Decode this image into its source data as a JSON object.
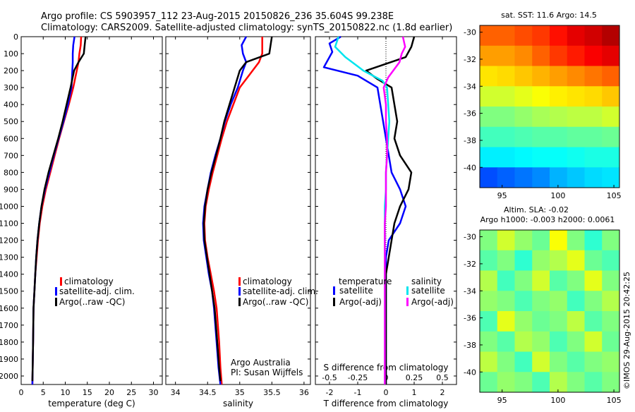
{
  "header": {
    "line1": "Argo profile: CS 5903957_112 23-Aug-2015 20150826_236 35.604S 99.238E",
    "line2": "Climatology: CARS2009. Satellite-adjusted climatology: synTS_20150822.nc (1.8d earlier)"
  },
  "colors": {
    "climatology": "#ff0000",
    "satellite": "#0000ff",
    "argo": "#000000",
    "satellite_salinity": "#00e5ee",
    "argo_salinity": "#ff00ff"
  },
  "legend": {
    "climatology": "climatology",
    "satellite": "satellite-adj. clim.",
    "argo": "Argo(..raw -QC)",
    "diff_temp_title": "temperature",
    "diff_sal_title": "salinity",
    "diff_satellite": "satellite",
    "diff_argo": "Argo(-adj)"
  },
  "annotations": {
    "institution": "Argo Australia",
    "pi": "PI: Susan Wijffels",
    "sst_title": "sat. SST: 11.6  Argo: 14.5",
    "sla_title1": "Altim. SLA: -0.02",
    "sla_title2": "Argo h1000: -0.003 h2000: 0.0061",
    "credit": "©IMOS 29-Aug-2015 20:42:25"
  },
  "chart_data": [
    {
      "type": "line",
      "xlabel": "temperature (deg C)",
      "xlim": [
        0,
        32
      ],
      "ylim": [
        0,
        2050
      ],
      "xticks": [
        0,
        5,
        10,
        15,
        20,
        25,
        30
      ],
      "yticks": [
        0,
        100,
        200,
        300,
        400,
        500,
        600,
        700,
        800,
        900,
        1000,
        1100,
        1200,
        1300,
        1400,
        1500,
        1600,
        1700,
        1800,
        1900,
        2000
      ],
      "y_reversed": true,
      "grid": false,
      "legend_position": "lower-right",
      "series": [
        {
          "name": "climatology",
          "color_key": "climatology",
          "x": [
            13.6,
            13.5,
            13.2,
            13.0,
            12.6,
            11.8,
            10.8,
            9.7,
            8.6,
            7.6,
            6.6,
            5.6,
            4.8,
            4.2,
            3.8,
            3.5,
            3.2,
            3.0,
            2.8,
            2.7,
            2.6,
            2.55
          ],
          "y": [
            0,
            50,
            100,
            150,
            200,
            300,
            400,
            500,
            600,
            700,
            800,
            900,
            1000,
            1100,
            1200,
            1300,
            1400,
            1500,
            1600,
            1800,
            1950,
            2050
          ]
        },
        {
          "name": "satellite-adj. clim.",
          "color_key": "satellite",
          "x": [
            12.1,
            11.8,
            11.7,
            11.7,
            11.6,
            11.4,
            10.6,
            9.6,
            8.5,
            7.4,
            6.4,
            5.4,
            4.6,
            4.1,
            3.7,
            3.4,
            3.2,
            3.0,
            2.8,
            2.7,
            2.6,
            2.55
          ],
          "y": [
            0,
            50,
            100,
            150,
            200,
            300,
            400,
            500,
            600,
            700,
            800,
            900,
            1000,
            1100,
            1200,
            1300,
            1400,
            1500,
            1600,
            1800,
            1950,
            2050
          ]
        },
        {
          "name": "Argo(..raw -QC)",
          "color_key": "argo",
          "x": [
            14.6,
            14.4,
            14.2,
            13.0,
            12.0,
            11.2,
            10.3,
            9.4,
            8.4,
            7.3,
            6.2,
            5.3,
            4.6,
            4.1,
            3.7,
            3.4,
            3.2,
            3.0,
            2.8,
            2.7,
            2.6,
            2.55
          ],
          "y": [
            0,
            50,
            100,
            150,
            200,
            300,
            400,
            500,
            600,
            700,
            800,
            900,
            1000,
            1100,
            1200,
            1300,
            1400,
            1500,
            1600,
            1800,
            1950,
            2030
          ]
        }
      ]
    },
    {
      "type": "line",
      "xlabel": "salinity",
      "xlim": [
        33.85,
        36.1
      ],
      "ylim": [
        0,
        2050
      ],
      "xticks": [
        34,
        34.5,
        35,
        35.5,
        36
      ],
      "y_reversed": true,
      "grid": false,
      "legend_position": "lower-right",
      "series": [
        {
          "name": "climatology",
          "color_key": "climatology",
          "x": [
            35.35,
            35.35,
            35.35,
            35.3,
            35.2,
            35.0,
            34.9,
            34.8,
            34.72,
            34.65,
            34.58,
            34.52,
            34.47,
            34.45,
            34.46,
            34.5,
            34.55,
            34.6,
            34.64,
            34.68,
            34.7,
            34.72
          ],
          "y": [
            0,
            50,
            100,
            150,
            200,
            300,
            400,
            500,
            600,
            700,
            800,
            900,
            1000,
            1100,
            1200,
            1300,
            1400,
            1500,
            1600,
            1800,
            1950,
            2050
          ]
        },
        {
          "name": "satellite-adj. clim.",
          "color_key": "satellite",
          "x": [
            35.1,
            35.03,
            35.05,
            35.1,
            35.05,
            34.97,
            34.86,
            34.77,
            34.7,
            34.62,
            34.55,
            34.5,
            34.45,
            34.43,
            34.44,
            34.48,
            34.52,
            34.57,
            34.6,
            34.64,
            34.67,
            34.7
          ],
          "y": [
            0,
            50,
            100,
            150,
            200,
            300,
            400,
            500,
            600,
            700,
            800,
            900,
            1000,
            1100,
            1200,
            1300,
            1400,
            1500,
            1600,
            1800,
            1950,
            2050
          ]
        },
        {
          "name": "Argo(..raw -QC)",
          "color_key": "argo",
          "x": [
            35.5,
            35.48,
            35.46,
            35.1,
            35.0,
            34.92,
            34.84,
            34.76,
            34.7,
            34.63,
            34.56,
            34.5,
            34.46,
            34.44,
            34.45,
            34.49,
            34.53,
            34.57,
            34.61,
            34.65,
            34.68,
            34.7
          ],
          "y": [
            0,
            50,
            100,
            150,
            200,
            300,
            400,
            500,
            600,
            700,
            800,
            900,
            1000,
            1100,
            1200,
            1300,
            1400,
            1500,
            1600,
            1800,
            1950,
            2030
          ]
        }
      ]
    },
    {
      "type": "line",
      "xlabel": "T difference from climatology",
      "top_axis_label": "S difference from climatology",
      "xlim": [
        -2.5,
        2.5
      ],
      "ylim": [
        0,
        2050
      ],
      "xticks": [
        -2,
        -1,
        0,
        1,
        2
      ],
      "top_xticks": [
        "-0.5",
        "-0.25",
        "0",
        "0.25",
        "0.5"
      ],
      "y_reversed": true,
      "grid": false,
      "zero_line": "dotted",
      "legend_position": "lower",
      "series": [
        {
          "name": "satellite",
          "group": "temperature",
          "color_key": "satellite",
          "x": [
            -1.6,
            -2.0,
            -1.9,
            -2.2,
            -1.0,
            -0.3,
            -0.2,
            -0.1,
            0.0,
            0.1,
            0.2,
            0.5,
            0.7,
            0.5,
            0.1,
            0.0,
            0.0,
            0.0,
            0.0,
            0.0,
            0.0
          ],
          "y": [
            0,
            40,
            90,
            180,
            230,
            300,
            400,
            500,
            600,
            700,
            800,
            900,
            1000,
            1100,
            1200,
            1300,
            1400,
            1600,
            1800,
            1950,
            2050
          ]
        },
        {
          "name": "Argo(-adj)",
          "group": "temperature",
          "color_key": "argo",
          "x": [
            1.0,
            0.9,
            0.7,
            -0.7,
            -0.3,
            0.2,
            0.3,
            0.4,
            0.3,
            0.5,
            0.9,
            0.8,
            0.5,
            0.3,
            0.2,
            0.1,
            0.0,
            0.0,
            0.0,
            0.0,
            0.0
          ],
          "y": [
            0,
            60,
            120,
            200,
            250,
            300,
            400,
            500,
            600,
            700,
            800,
            900,
            1000,
            1100,
            1200,
            1300,
            1400,
            1600,
            1800,
            1950,
            2050
          ]
        },
        {
          "name": "satellite",
          "group": "salinity",
          "color_key": "satellite_salinity",
          "x": [
            -0.42,
            -0.45,
            -0.36,
            -0.2,
            -0.03,
            0.01,
            0.02,
            0.03,
            0.02,
            0.01,
            0.0,
            0.0,
            -0.01,
            -0.01,
            -0.01,
            -0.01,
            -0.01,
            -0.01,
            -0.01,
            -0.01
          ],
          "y": [
            0,
            60,
            120,
            200,
            260,
            300,
            400,
            500,
            600,
            700,
            800,
            900,
            1000,
            1100,
            1200,
            1400,
            1600,
            1800,
            1950,
            2050
          ]
        },
        {
          "name": "Argo(-adj)",
          "group": "salinity",
          "color_key": "argo_salinity",
          "x": [
            0.15,
            0.17,
            0.14,
            0.12,
            0.02,
            -0.02,
            0.0,
            0.0,
            0.01,
            0.01,
            0.0,
            0.0,
            0.0,
            -0.01,
            -0.01,
            -0.01,
            -0.01,
            -0.01,
            -0.01,
            -0.01
          ],
          "y": [
            0,
            60,
            100,
            150,
            240,
            300,
            400,
            500,
            600,
            700,
            800,
            900,
            1000,
            1100,
            1200,
            1400,
            1600,
            1800,
            1950,
            2050
          ]
        }
      ]
    },
    {
      "type": "heatmap",
      "title": "sat. SST: 11.6  Argo: 14.5",
      "xlim": [
        93,
        105.5
      ],
      "ylim": [
        -41.5,
        -29.5
      ],
      "xticks": [
        95,
        100,
        105
      ],
      "yticks": [
        -30,
        -32,
        -34,
        -36,
        -38,
        -40
      ],
      "colormap": "jet",
      "rows": [
        [
          0.78,
          0.78,
          0.8,
          0.82,
          0.86,
          0.9,
          0.92,
          0.95
        ],
        [
          0.72,
          0.72,
          0.74,
          0.78,
          0.82,
          0.85,
          0.88,
          0.9
        ],
        [
          0.65,
          0.66,
          0.68,
          0.7,
          0.72,
          0.74,
          0.76,
          0.78
        ],
        [
          0.58,
          0.58,
          0.6,
          0.62,
          0.64,
          0.65,
          0.66,
          0.68
        ],
        [
          0.5,
          0.5,
          0.52,
          0.54,
          0.55,
          0.56,
          0.56,
          0.58
        ],
        [
          0.44,
          0.44,
          0.45,
          0.46,
          0.46,
          0.47,
          0.47,
          0.48
        ],
        [
          0.36,
          0.36,
          0.37,
          0.38,
          0.38,
          0.39,
          0.4,
          0.4
        ],
        [
          0.2,
          0.22,
          0.24,
          0.26,
          0.3,
          0.32,
          0.34,
          0.35
        ]
      ]
    },
    {
      "type": "heatmap",
      "title": "Altim. SLA: -0.02",
      "xlim": [
        93,
        105.5
      ],
      "ylim": [
        -41.5,
        -29.5
      ],
      "xticks": [
        95,
        100,
        105
      ],
      "yticks": [
        -30,
        -32,
        -34,
        -36,
        -38,
        -40
      ],
      "colormap": "jet",
      "rows": [
        [
          0.5,
          0.58,
          0.52,
          0.48,
          0.62,
          0.5,
          0.42,
          0.5
        ],
        [
          0.46,
          0.5,
          0.42,
          0.52,
          0.55,
          0.6,
          0.48,
          0.45
        ],
        [
          0.55,
          0.44,
          0.5,
          0.58,
          0.46,
          0.5,
          0.6,
          0.5
        ],
        [
          0.52,
          0.5,
          0.45,
          0.5,
          0.52,
          0.44,
          0.5,
          0.55
        ],
        [
          0.45,
          0.6,
          0.52,
          0.48,
          0.5,
          0.56,
          0.46,
          0.5
        ],
        [
          0.5,
          0.46,
          0.55,
          0.52,
          0.45,
          0.5,
          0.58,
          0.48
        ],
        [
          0.56,
          0.5,
          0.44,
          0.58,
          0.5,
          0.46,
          0.5,
          0.52
        ],
        [
          0.48,
          0.52,
          0.5,
          0.45,
          0.55,
          0.5,
          0.46,
          0.5
        ]
      ]
    }
  ]
}
